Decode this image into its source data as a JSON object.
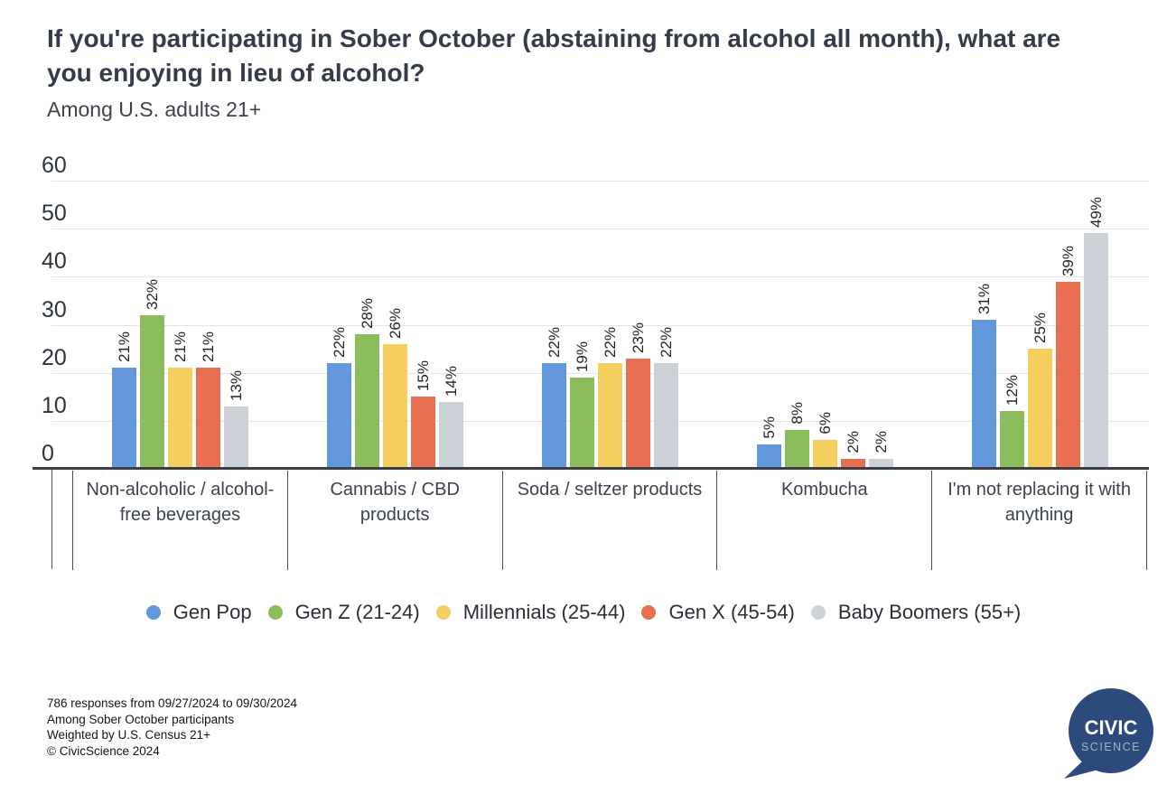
{
  "header": {
    "title": "If you're participating in Sober October (abstaining from alcohol all month), what are you enjoying in lieu of alcohol?",
    "subtitle": "Among U.S. adults 21+"
  },
  "chart_data": {
    "type": "bar",
    "title": "If you're participating in Sober October (abstaining from alcohol all month), what are you enjoying in lieu of alcohol?",
    "subtitle": "Among U.S. adults 21+",
    "categories": [
      "Non-alcoholic / alcohol-free beverages",
      "Cannabis / CBD products",
      "Soda / seltzer products",
      "Kombucha",
      "I'm not replacing it with anything"
    ],
    "series": [
      {
        "name": "Gen Pop",
        "color": "#6398DC",
        "values": [
          21,
          22,
          22,
          5,
          31
        ]
      },
      {
        "name": "Gen Z (21-24)",
        "color": "#8CBD5D",
        "values": [
          32,
          28,
          19,
          8,
          12
        ]
      },
      {
        "name": "Millennials (25-44)",
        "color": "#F5CE60",
        "values": [
          21,
          26,
          22,
          6,
          25
        ]
      },
      {
        "name": "Gen X (45-54)",
        "color": "#E96F53",
        "values": [
          21,
          15,
          23,
          2,
          39
        ]
      },
      {
        "name": "Baby Boomers (55+)",
        "color": "#CDD1D8",
        "values": [
          13,
          14,
          22,
          2,
          49
        ]
      }
    ],
    "value_suffix": "%",
    "y_axis": {
      "min": 0,
      "max": 60,
      "ticks": [
        0,
        10,
        20,
        30,
        40,
        50,
        60
      ]
    },
    "grid": true,
    "legend_position": "bottom"
  },
  "footer": {
    "lines": [
      "786 responses from 09/27/2024 to 09/30/2024",
      "Among Sober October participants",
      "Weighted by U.S. Census 21+",
      "© CivicScience 2024"
    ]
  },
  "logo": {
    "line1": "CIVIC",
    "line2": "SCIENCE",
    "bubble_color": "#2C4A7B",
    "line2_color": "#A6B4C8"
  }
}
